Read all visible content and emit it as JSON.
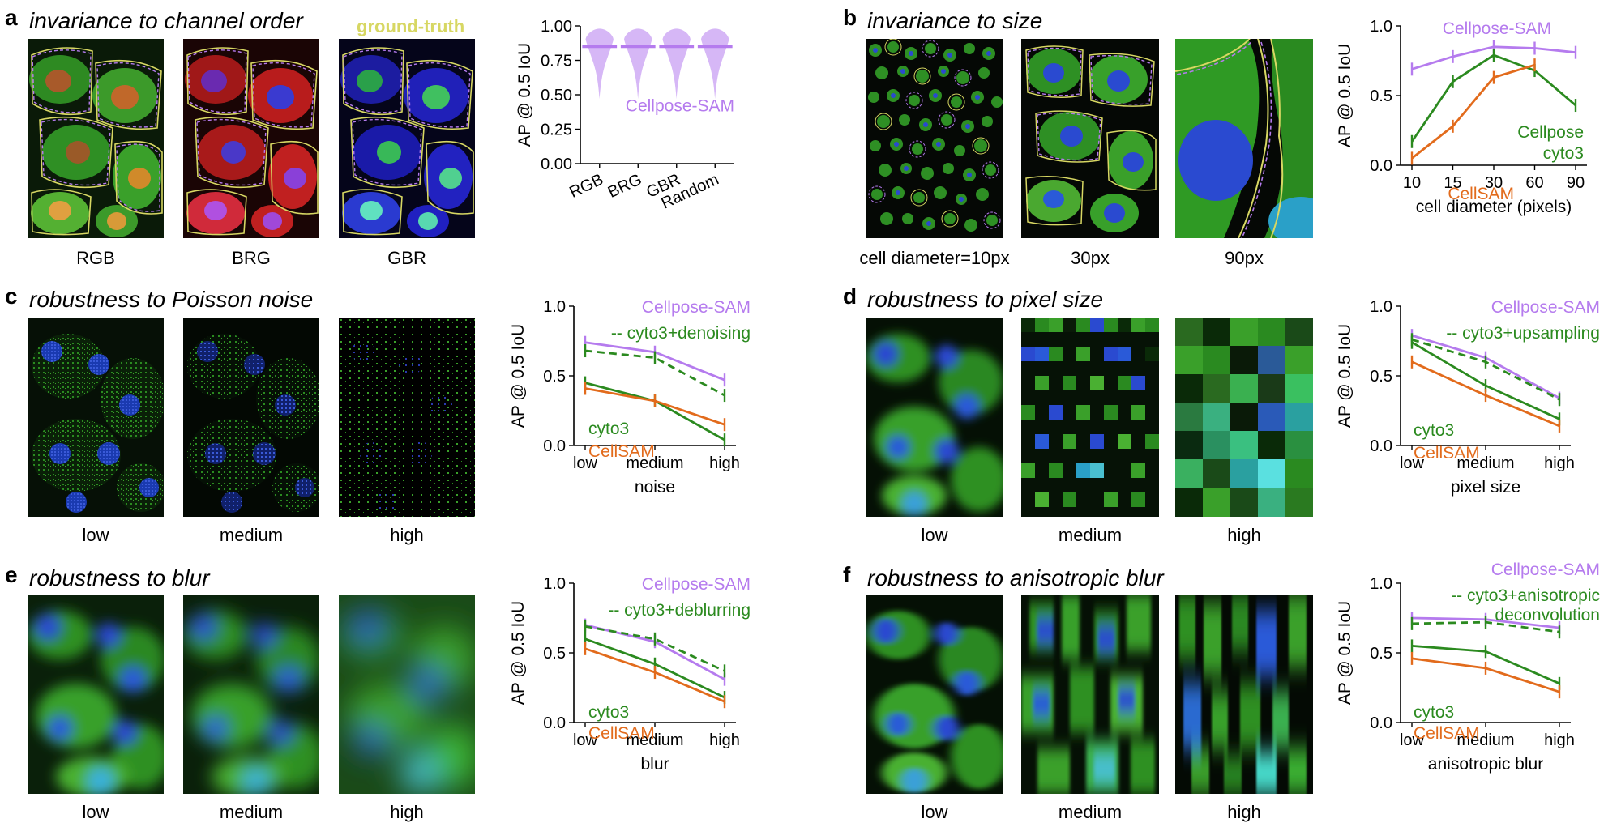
{
  "colors": {
    "cellpose_sam": "#b57bee",
    "cyto3": "#2b8a1f",
    "cellsam": "#e26b1c",
    "ground_truth": "#d7d763"
  },
  "panels": {
    "a": {
      "letter": "a",
      "title": "invariance to channel order",
      "gt_label": "ground-truth",
      "image_labels": [
        "RGB",
        "BRG",
        "GBR"
      ]
    },
    "b": {
      "letter": "b",
      "title": "invariance to size",
      "image_labels": [
        "cell diameter=10px",
        "30px",
        "90px"
      ]
    },
    "c": {
      "letter": "c",
      "title": "robustness to Poisson noise",
      "image_labels": [
        "low",
        "medium",
        "high"
      ]
    },
    "d": {
      "letter": "d",
      "title": "robustness to pixel size",
      "image_labels": [
        "low",
        "medium",
        "high"
      ]
    },
    "e": {
      "letter": "e",
      "title": "robustness to blur",
      "image_labels": [
        "low",
        "medium",
        "high"
      ]
    },
    "f": {
      "letter": "f",
      "title": "robustness to anisotropic blur",
      "image_labels": [
        "low",
        "medium",
        "high"
      ]
    }
  },
  "chart_data": [
    {
      "id": "a",
      "type": "violin",
      "categories": [
        "RGB",
        "BRG",
        "GBR",
        "Random"
      ],
      "medians": [
        0.85,
        0.85,
        0.85,
        0.85
      ],
      "range_min": [
        0.47,
        0.47,
        0.47,
        0.47
      ],
      "range_max": [
        0.98,
        0.98,
        0.98,
        0.98
      ],
      "ylim": [
        0,
        1
      ],
      "yticks": [
        "0.00",
        "0.25",
        "0.50",
        "0.75",
        "1.00"
      ],
      "ylabel": "AP @ 0.5 IoU",
      "xlabel": "",
      "legend": [
        "Cellpose-SAM"
      ],
      "series": [
        {
          "name": "Cellpose-SAM",
          "color": "#b57bee"
        }
      ]
    },
    {
      "id": "b",
      "type": "line",
      "categories": [
        "10",
        "15",
        "30",
        "60",
        "90"
      ],
      "ylim": [
        0,
        1
      ],
      "yticks": [
        "0.0",
        "0.5",
        "1.0"
      ],
      "ylabel": "AP @ 0.5 IoU",
      "xlabel": "cell diameter (pixels)",
      "series": [
        {
          "name": "Cellpose-SAM",
          "color": "#b57bee",
          "dashed": false,
          "values": [
            0.69,
            0.78,
            0.85,
            0.84,
            0.81
          ]
        },
        {
          "name": "Cellpose cyto3",
          "color": "#2b8a1f",
          "dashed": false,
          "values": [
            0.17,
            0.6,
            0.79,
            0.68,
            0.43
          ]
        },
        {
          "name": "CellSAM",
          "color": "#e26b1c",
          "dashed": false,
          "values": [
            0.05,
            0.28,
            0.63,
            0.72,
            null
          ]
        }
      ],
      "legend": [
        "Cellpose-SAM",
        "Cellpose",
        "cyto3",
        "CellSAM"
      ]
    },
    {
      "id": "c",
      "type": "line",
      "categories": [
        "low",
        "medium",
        "high"
      ],
      "ylim": [
        0,
        1
      ],
      "yticks": [
        "0.0",
        "0.5",
        "1.0"
      ],
      "ylabel": "AP @ 0.5 IoU",
      "xlabel": "noise",
      "series": [
        {
          "name": "Cellpose-SAM",
          "color": "#b57bee",
          "dashed": false,
          "values": [
            0.74,
            0.67,
            0.47
          ]
        },
        {
          "name": "cyto3+denoising",
          "color": "#2b8a1f",
          "dashed": true,
          "values": [
            0.68,
            0.63,
            0.36
          ]
        },
        {
          "name": "cyto3",
          "color": "#2b8a1f",
          "dashed": false,
          "values": [
            0.45,
            0.32,
            0.04
          ]
        },
        {
          "name": "CellSAM",
          "color": "#e26b1c",
          "dashed": false,
          "values": [
            0.41,
            0.32,
            0.15
          ]
        }
      ],
      "legend": [
        "Cellpose-SAM",
        "-- cyto3+denoising",
        "cyto3",
        "CellSAM"
      ]
    },
    {
      "id": "d",
      "type": "line",
      "categories": [
        "low",
        "medium",
        "high"
      ],
      "ylim": [
        0,
        1
      ],
      "yticks": [
        "0.0",
        "0.5",
        "1.0"
      ],
      "ylabel": "AP @ 0.5 IoU",
      "xlabel": "pixel size",
      "series": [
        {
          "name": "Cellpose-SAM",
          "color": "#b57bee",
          "dashed": false,
          "values": [
            0.79,
            0.63,
            0.34
          ]
        },
        {
          "name": "cyto3+upsampling",
          "color": "#2b8a1f",
          "dashed": true,
          "values": [
            0.76,
            0.6,
            0.33
          ]
        },
        {
          "name": "cyto3",
          "color": "#2b8a1f",
          "dashed": false,
          "values": [
            0.74,
            0.43,
            0.19
          ]
        },
        {
          "name": "CellSAM",
          "color": "#e26b1c",
          "dashed": false,
          "values": [
            0.6,
            0.36,
            0.14
          ]
        }
      ],
      "legend": [
        "Cellpose-SAM",
        "-- cyto3+upsampling",
        "cyto3",
        "CellSAM"
      ]
    },
    {
      "id": "e",
      "type": "line",
      "categories": [
        "low",
        "medium",
        "high"
      ],
      "ylim": [
        0,
        1
      ],
      "yticks": [
        "0.0",
        "0.5",
        "1.0"
      ],
      "ylabel": "AP @ 0.5 IoU",
      "xlabel": "blur",
      "series": [
        {
          "name": "Cellpose-SAM",
          "color": "#b57bee",
          "dashed": false,
          "values": [
            0.7,
            0.58,
            0.31
          ]
        },
        {
          "name": "cyto3+deblurring",
          "color": "#2b8a1f",
          "dashed": true,
          "values": [
            0.69,
            0.6,
            0.37
          ]
        },
        {
          "name": "cyto3",
          "color": "#2b8a1f",
          "dashed": false,
          "values": [
            0.6,
            0.42,
            0.18
          ]
        },
        {
          "name": "CellSAM",
          "color": "#e26b1c",
          "dashed": false,
          "values": [
            0.53,
            0.36,
            0.15
          ]
        }
      ],
      "legend": [
        "Cellpose-SAM",
        "-- cyto3+deblurring",
        "cyto3",
        "CellSAM"
      ]
    },
    {
      "id": "f",
      "type": "line",
      "categories": [
        "low",
        "medium",
        "high"
      ],
      "ylim": [
        0,
        1
      ],
      "yticks": [
        "0.0",
        "0.5",
        "1.0"
      ],
      "ylabel": "AP @ 0.5 IoU",
      "xlabel": "anisotropic blur",
      "series": [
        {
          "name": "Cellpose-SAM",
          "color": "#b57bee",
          "dashed": false,
          "values": [
            0.75,
            0.74,
            0.68
          ]
        },
        {
          "name": "cyto3+anisotropic deconvolution",
          "color": "#2b8a1f",
          "dashed": true,
          "values": [
            0.71,
            0.72,
            0.65
          ]
        },
        {
          "name": "cyto3",
          "color": "#2b8a1f",
          "dashed": false,
          "values": [
            0.55,
            0.51,
            0.28
          ]
        },
        {
          "name": "CellSAM",
          "color": "#e26b1c",
          "dashed": false,
          "values": [
            0.46,
            0.39,
            0.22
          ]
        }
      ],
      "legend": [
        "Cellpose-SAM",
        "-- cyto3+anisotropic",
        "deconvolution",
        "cyto3",
        "CellSAM"
      ]
    }
  ]
}
